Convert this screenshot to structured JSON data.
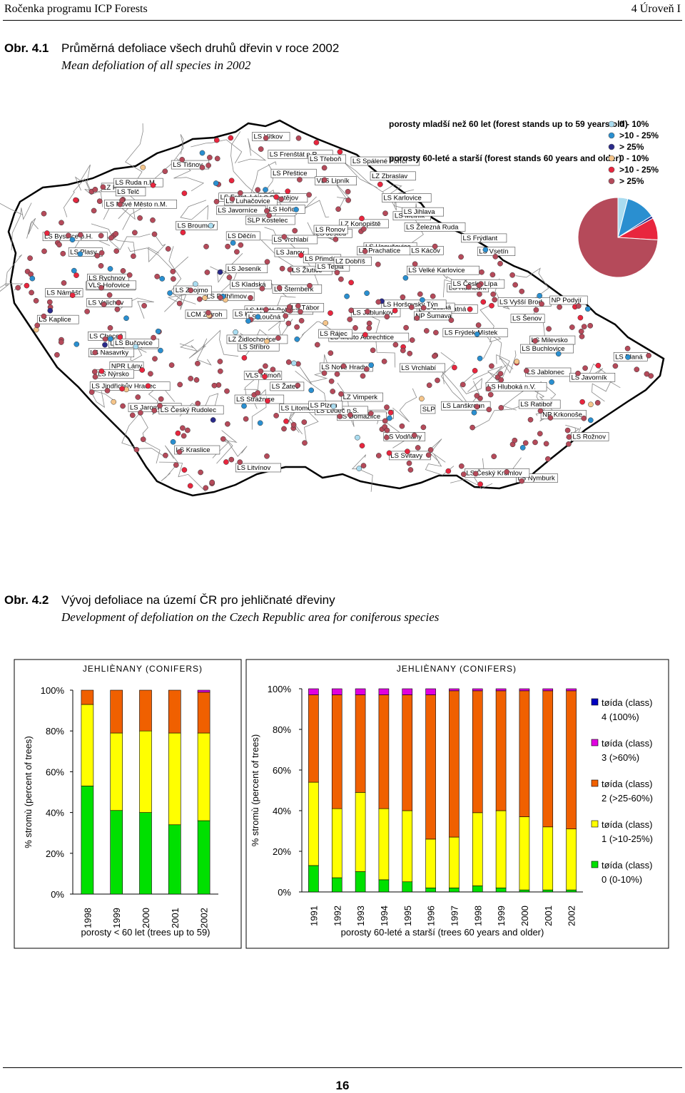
{
  "header": {
    "left": "Ročenka programu ICP Forests",
    "right": "4 Úroveň I"
  },
  "fig1": {
    "number": "Obr. 4.1",
    "title": "Průměrná defoliace všech druhů dřevin v roce 2002",
    "subtitle": "Mean defoliation of all species in 2002"
  },
  "map": {
    "legend": {
      "group_young": "porosty mladší než 60 let (forest stands up to 59 years old)",
      "group_old": "porosty 60-leté a starší (forest stands 60 years and older)",
      "classes": [
        {
          "label": "0 - 10%",
          "color": "#a9dcf0"
        },
        {
          "label": ">10 - 25%",
          "color": "#2a8fd0"
        },
        {
          "label": "> 25%",
          "color": "#2a2a8a"
        },
        {
          "label": "0 - 10%",
          "color": "#f5c58a"
        },
        {
          "label": ">10 - 25%",
          "color": "#e8263e"
        },
        {
          "label": "> 25%",
          "color": "#b54a5a"
        }
      ]
    },
    "pie": [
      {
        "label": "0 - 10%",
        "value": 4,
        "color": "#a9dcf0"
      },
      {
        "label": ">10 - 25%",
        "value": 12,
        "color": "#2a8fd0"
      },
      {
        "label": "> 25%",
        "value": 1,
        "color": "#2a2a8a"
      },
      {
        "label": ">10 - 25%",
        "value": 9,
        "color": "#e8263e"
      },
      {
        "label": "> 25%",
        "value": 74,
        "color": "#b54a5a"
      }
    ],
    "places": [
      "LS Rumburk",
      "LS Frýdlant",
      "LS Děčín",
      "LS Ještěd",
      "LS Česká Lípa",
      "LS Jablonec",
      "LS Vrchlabí",
      "LS Litvínov",
      "VLS Mimoň",
      "LS Janov",
      "LS Klášterec",
      "LS Litoměřice",
      "NP Krkonoše",
      "LS Vrchlabí",
      "LS Horní Blatná",
      "LS Mladá Boleslav",
      "LS Broumov",
      "LS Kraslice",
      "LS Žatec",
      "LS Hořice",
      "LS Frant. Lázně",
      "LS Velichov",
      "LS Lužná",
      "LS Mělník",
      "LS Kladská",
      "LS Žlutice",
      "LS Nymburk",
      "LS Tepla",
      "LS Stříbro",
      "LS Plasy",
      "NPR Lány",
      "LS Křivoklát",
      "LS Nižbor",
      "LZ Praha",
      "LS Rychnov",
      "LS Javorník",
      "LS Planá",
      "LS Přimda",
      "LS Přeštice",
      "LCM Zbiroh",
      "LZ Zbraslav",
      "SLP Kostelec",
      "LS Jeseník",
      "LS Hanušovice",
      "LS Město Albrechtice",
      "LS Horšovský Týn",
      "VLS Hořovice",
      "LZ Dobříš",
      "LZ Konopiště",
      "LS Ronov",
      "LS Choceň",
      "LS Lanškroun",
      "LS Loučná",
      "LS Karlovice",
      "LS Spálené Poříčí",
      "LS Kácov",
      "LS Ruda n.M.",
      "LS Javorníce",
      "LS Bruntál",
      "LS Domažlice",
      "LS Nasavrky",
      "LS Svitavy",
      "LS Opava",
      "LS Nýrsko",
      "LS Milevsko",
      "LS Ledeč n.S.",
      "LS Šternberk",
      "LS Vítkov",
      "LS Šenov",
      "LS Nové Město n.M.",
      "VLS Lipník",
      "LS Železná Ruda",
      "LS Tábor",
      "LS Pelhřimov",
      "LS Jihlava",
      "LS Tišnov",
      "LS Rájec",
      "LS Prostějov",
      "LS Frenštát p.R.",
      "LS Frýdek-Místek",
      "LS Vodňany",
      "LS Jindřichův Hradec",
      "LS Rožnov",
      "LS Jablunkov",
      "LZ Vimperk",
      "NP Šumava",
      "LS Hluboká n.V.",
      "LS Telč",
      "SLP",
      "LS Jaroměřice",
      "LS Náměšť",
      "LS Ratiboř",
      "LS Bystřice p.H.",
      "LS Vsetín",
      "LS Velké Karlovice",
      "LZ Prachatice",
      "LS Český Krumlov",
      "LS Třeboň",
      "LS Český Rudolec",
      "LS Bučovice",
      "LS Kaplice",
      "LS Nové Hrady",
      "LS Znojmo",
      "LS Buchlovice",
      "LS Luhačovice",
      "LS Plzen",
      "LZ Židlochovice",
      "LS Strážnice",
      "LS Vyšší Brod",
      "NP Podyjí"
    ]
  },
  "fig2": {
    "number": "Obr. 4.2",
    "title": "Vývoj defoliace na území ČR pro jehličnaté dřeviny",
    "subtitle": "Development of defoliation on the Czech Republic area for coniferous species"
  },
  "chart_data": [
    {
      "type": "bar",
      "stacked": true,
      "title": "JEHLIÈNANY (CONIFERS)",
      "xlabel": "porosty < 60 let (trees up to 59)",
      "ylabel": "% stromù (percent of trees)",
      "yticks": [
        "0%",
        "20%",
        "40%",
        "60%",
        "80%",
        "100%"
      ],
      "ylim": [
        0,
        100
      ],
      "categories": [
        "1998",
        "1999",
        "2000",
        "2001",
        "2002"
      ],
      "series": [
        {
          "name": "tøída (class) 0 (0-10%)",
          "color": "#00e000",
          "values": [
            53,
            41,
            40,
            34,
            36
          ]
        },
        {
          "name": "tøída (class) 1 (>10-25%)",
          "color": "#ffff00",
          "values": [
            40,
            38,
            40,
            45,
            43
          ]
        },
        {
          "name": "tøída (class) 2 (>25-60%)",
          "color": "#f06000",
          "values": [
            7,
            21,
            20,
            21,
            20
          ]
        },
        {
          "name": "tøída (class) 3 (>60%)",
          "color": "#e000e0",
          "values": [
            0,
            0,
            0,
            0,
            1
          ]
        },
        {
          "name": "tøída (class) 4 (100%)",
          "color": "#0000c0",
          "values": [
            0,
            0,
            0,
            0,
            0
          ]
        }
      ]
    },
    {
      "type": "bar",
      "stacked": true,
      "title": "JEHLIÈNANY (CONIFERS)",
      "xlabel": "porosty 60-leté a starší (trees 60 years and older)",
      "ylabel": "% stromù (percent of trees)",
      "yticks": [
        "0%",
        "20%",
        "40%",
        "60%",
        "80%",
        "100%"
      ],
      "ylim": [
        0,
        100
      ],
      "categories": [
        "1991",
        "1992",
        "1993",
        "1994",
        "1995",
        "1996",
        "1997",
        "1998",
        "1999",
        "2000",
        "2001",
        "2002"
      ],
      "series": [
        {
          "name": "tøída (class) 0 (0-10%)",
          "color": "#00e000",
          "values": [
            13,
            7,
            10,
            6,
            5,
            2,
            2,
            3,
            2,
            1,
            1,
            1
          ]
        },
        {
          "name": "tøída (class) 1 (>10-25%)",
          "color": "#ffff00",
          "values": [
            41,
            34,
            39,
            35,
            35,
            24,
            25,
            36,
            38,
            36,
            31,
            30
          ]
        },
        {
          "name": "tøída (class) 2 (>25-60%)",
          "color": "#f06000",
          "values": [
            43,
            56,
            48,
            56,
            57,
            71,
            72,
            60,
            59,
            62,
            67,
            68
          ]
        },
        {
          "name": "tøída (class) 3 (>60%)",
          "color": "#e000e0",
          "values": [
            3,
            3,
            3,
            3,
            3,
            3,
            1,
            1,
            1,
            1,
            1,
            1
          ]
        },
        {
          "name": "tøída (class) 4 (100%)",
          "color": "#0000c0",
          "values": [
            0,
            0,
            0,
            0,
            0,
            0,
            0,
            0,
            0,
            0,
            0,
            0
          ]
        }
      ]
    }
  ],
  "legend2": [
    {
      "line1": "tøída (class)",
      "line2": "4 (100%)",
      "color": "#0000c0"
    },
    {
      "line1": "tøída (class)",
      "line2": "3 (>60%)",
      "color": "#e000e0"
    },
    {
      "line1": "tøída (class)",
      "line2": "2 (>25-60%)",
      "color": "#f06000"
    },
    {
      "line1": "tøída (class)",
      "line2": "1 (>10-25%)",
      "color": "#ffff00"
    },
    {
      "line1": "tøída (class)",
      "line2": "0 (0-10%)",
      "color": "#00e000"
    }
  ],
  "page_number": "16"
}
